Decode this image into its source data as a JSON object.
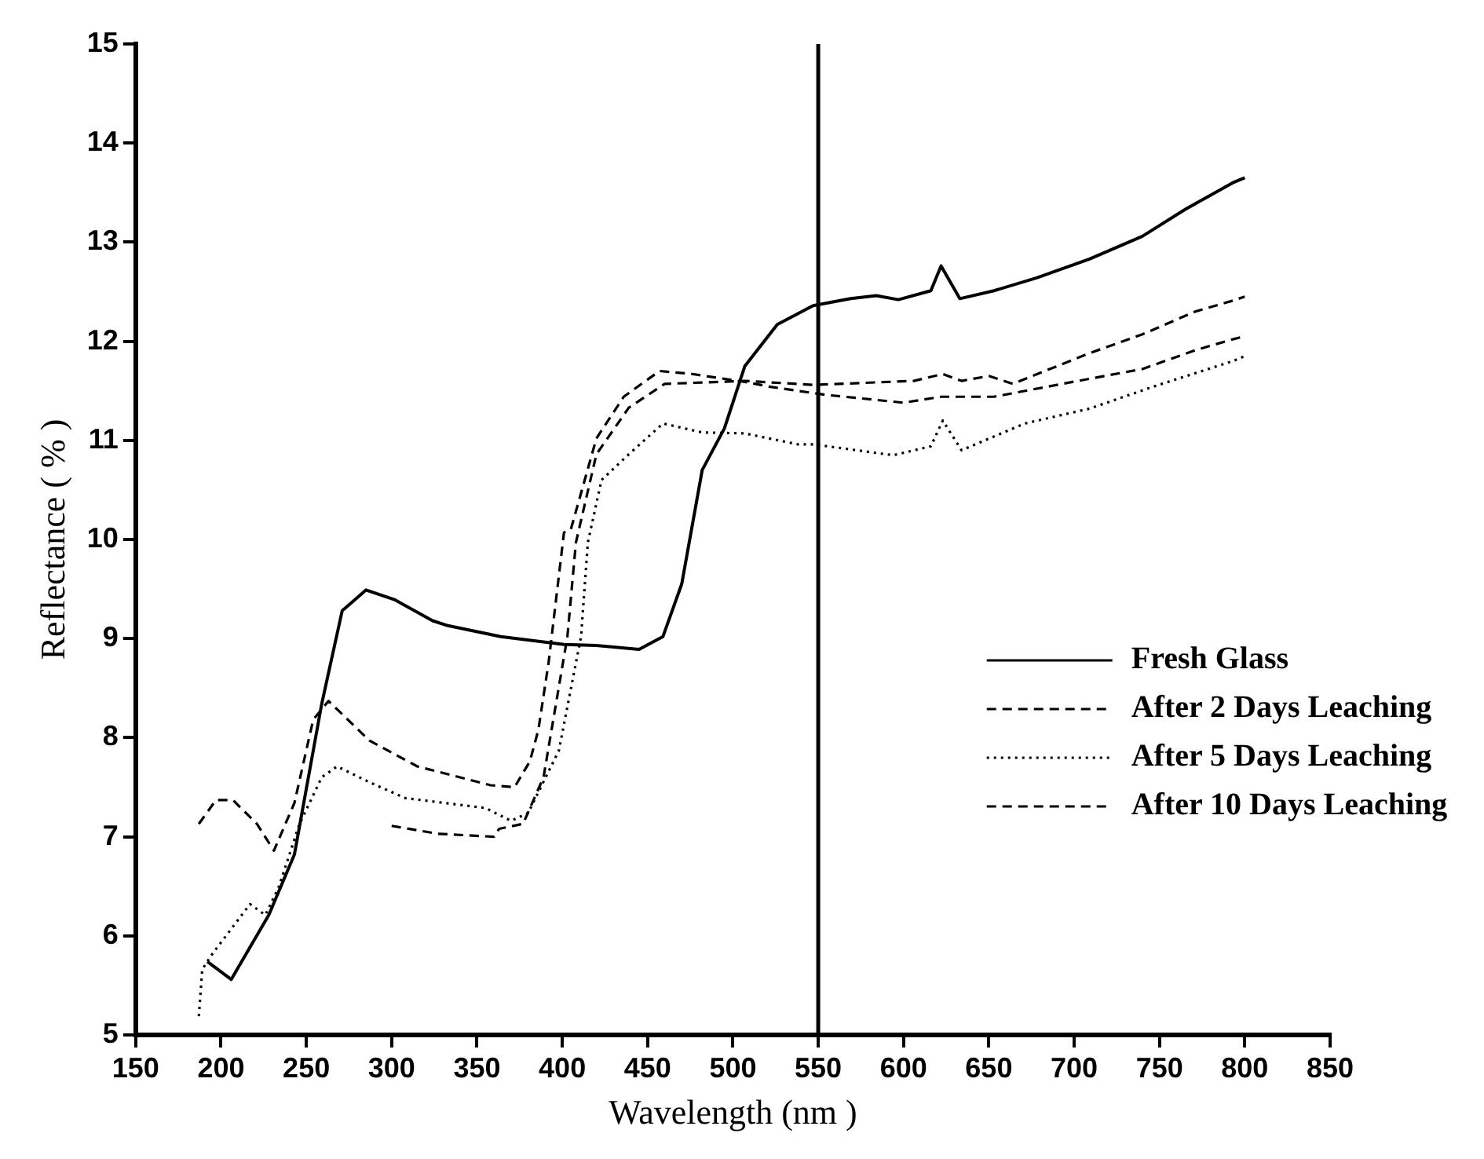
{
  "chart_data": {
    "type": "line",
    "xlabel": "Wavelength (nm )",
    "ylabel": "Reflectance ( % )",
    "xlim": [
      150,
      850
    ],
    "xticks": [
      150,
      200,
      250,
      300,
      350,
      400,
      450,
      500,
      550,
      600,
      650,
      700,
      750,
      800,
      850
    ],
    "ylim": [
      5,
      15
    ],
    "yticks": [
      5,
      6,
      7,
      8,
      9,
      10,
      11,
      12,
      13,
      14,
      15
    ],
    "grid": false,
    "legend": "bottom right",
    "marker": "none",
    "ref_lines": [
      {
        "axis": "x",
        "value": 550,
        "color": "#000000",
        "line_style": "solid"
      }
    ],
    "series": [
      {
        "name": "Fresh Glass",
        "color": "#000000",
        "line_style": "solid",
        "x": [
          192,
          206,
          228,
          243,
          259,
          271,
          285,
          302,
          324,
          333,
          364,
          401,
          420,
          445,
          459,
          470,
          482,
          495,
          507,
          526,
          547,
          569,
          584,
          597,
          616,
          622,
          633,
          653,
          678,
          709,
          740,
          765,
          793,
          800
        ],
        "values": [
          5.74,
          5.56,
          6.21,
          6.82,
          8.34,
          9.28,
          9.49,
          9.39,
          9.18,
          9.13,
          9.02,
          8.94,
          8.93,
          8.89,
          9.02,
          9.55,
          10.7,
          11.12,
          11.75,
          12.17,
          12.36,
          12.43,
          12.46,
          12.42,
          12.51,
          12.76,
          12.43,
          12.51,
          12.64,
          12.83,
          13.06,
          13.33,
          13.6,
          13.65
        ]
      },
      {
        "name": "After 2 Days Leaching",
        "color": "#000000",
        "line_style": "dashed",
        "x": [
          187,
          197,
          207,
          221,
          231,
          243,
          254,
          263,
          287,
          315,
          358,
          372,
          381,
          386,
          392,
          401,
          405,
          420,
          436,
          457,
          476,
          507,
          522,
          554,
          600,
          622,
          653,
          693,
          740,
          771,
          793,
          800
        ],
        "values": [
          7.13,
          7.37,
          7.37,
          7.13,
          6.86,
          7.34,
          8.18,
          8.37,
          7.97,
          7.71,
          7.52,
          7.5,
          7.76,
          8.08,
          8.76,
          10.07,
          10.1,
          11.02,
          11.44,
          11.7,
          11.67,
          11.59,
          11.54,
          11.46,
          11.38,
          11.44,
          11.44,
          11.57,
          11.72,
          11.91,
          12.02,
          12.05
        ]
      },
      {
        "name": "After 5 Days Leaching",
        "color": "#000000",
        "line_style": "dotted",
        "x": [
          187,
          189,
          195,
          217,
          226,
          234,
          246,
          259,
          268,
          287,
          308,
          355,
          370,
          380,
          398,
          411,
          415,
          423,
          439,
          459,
          482,
          507,
          538,
          547,
          594,
          616,
          623,
          634,
          671,
          709,
          746,
          793,
          800
        ],
        "values": [
          5.19,
          5.66,
          5.82,
          6.32,
          6.21,
          6.5,
          7.13,
          7.6,
          7.71,
          7.55,
          7.39,
          7.29,
          7.16,
          7.24,
          7.87,
          9.02,
          9.97,
          10.6,
          10.86,
          11.17,
          11.08,
          11.07,
          10.96,
          10.96,
          10.85,
          10.94,
          11.2,
          10.9,
          11.17,
          11.32,
          11.54,
          11.8,
          11.85
        ]
      },
      {
        "name": "After 10 Days Leaching",
        "color": "#000000",
        "line_style": "dashed",
        "x": [
          300,
          327,
          360,
          363,
          377,
          389,
          403,
          408,
          420,
          439,
          460,
          507,
          547,
          606,
          623,
          634,
          650,
          664,
          709,
          740,
          771,
          793,
          800
        ],
        "values": [
          7.11,
          7.03,
          7.0,
          7.08,
          7.13,
          7.6,
          9.02,
          9.97,
          10.86,
          11.33,
          11.57,
          11.6,
          11.56,
          11.6,
          11.67,
          11.6,
          11.65,
          11.57,
          11.88,
          12.07,
          12.3,
          12.41,
          12.45
        ]
      }
    ]
  }
}
